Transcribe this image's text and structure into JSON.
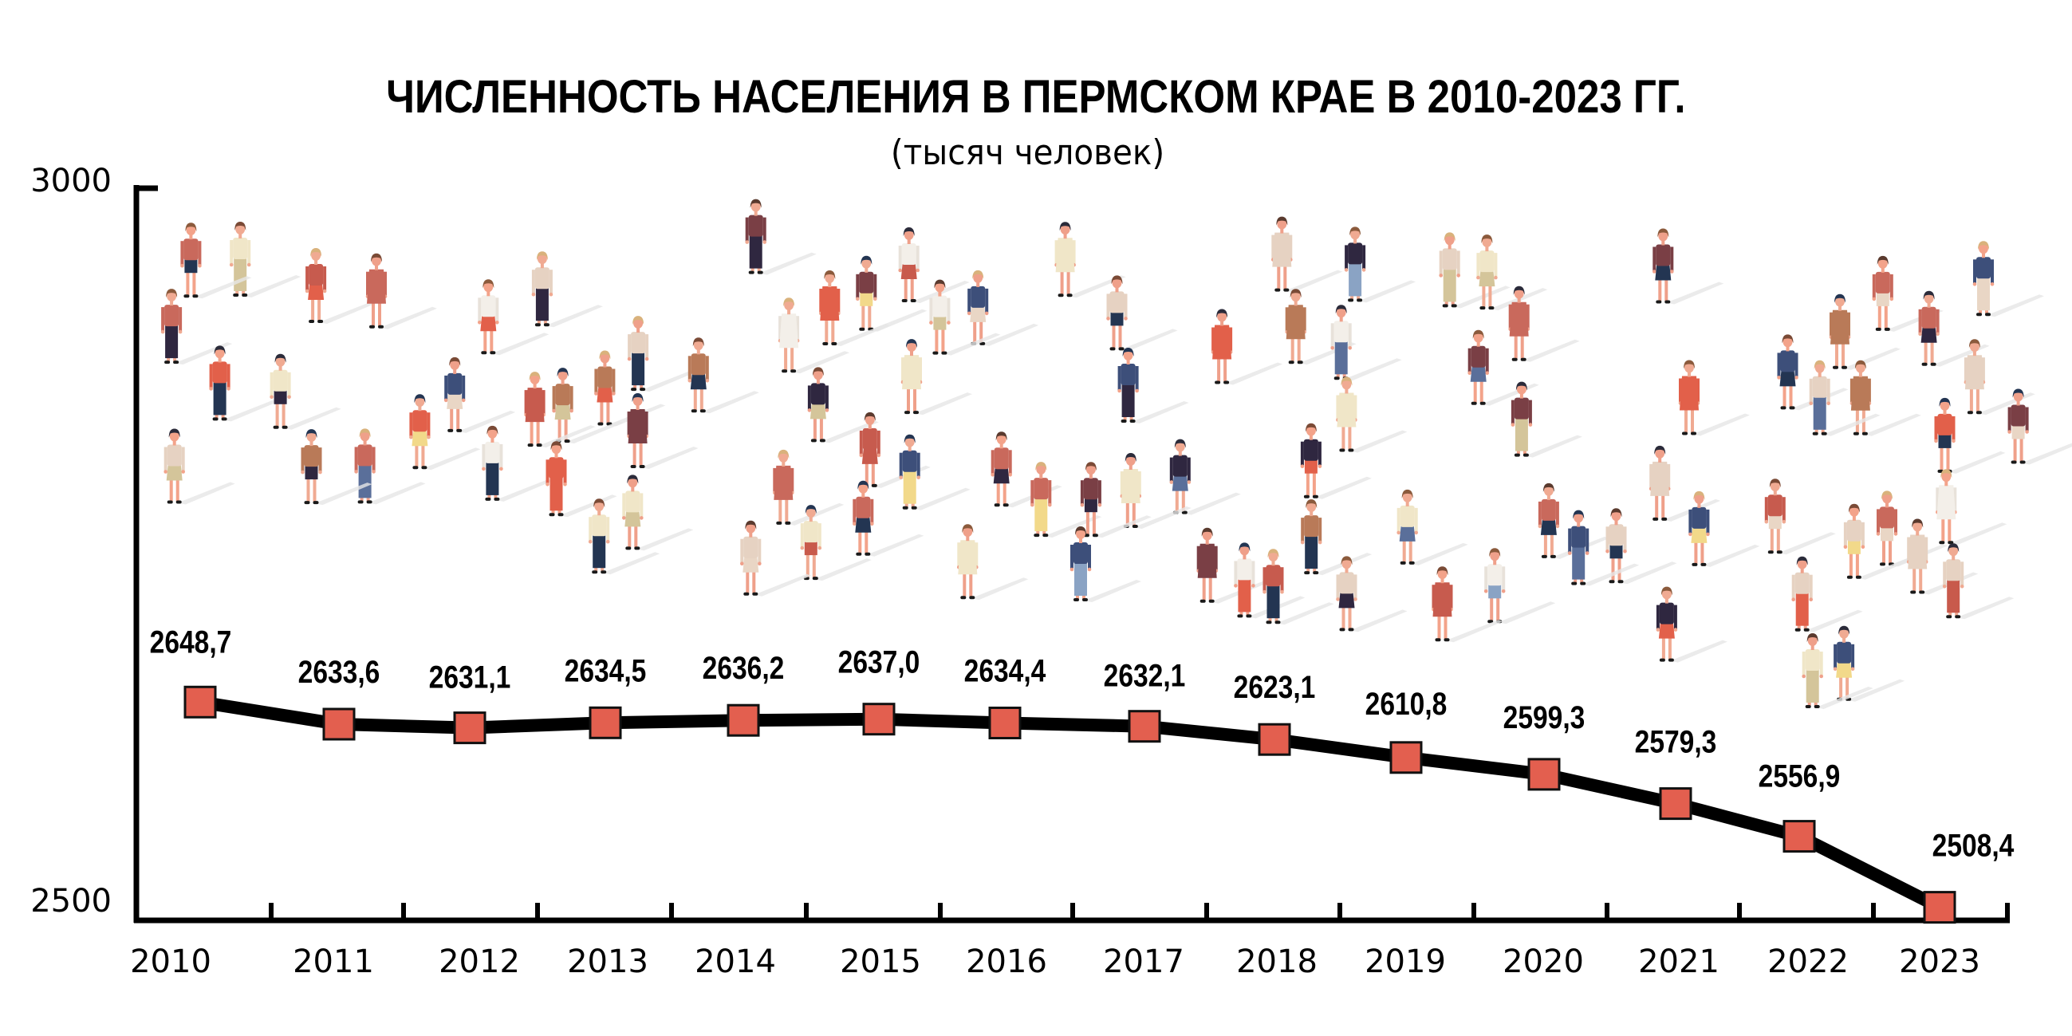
{
  "chart_data": {
    "type": "line",
    "title": "ЧИСЛЕННОСТЬ НАСЕЛЕНИЯ В ПЕРМСКОМ КРАЕ В 2010-2023 ГГ.",
    "subtitle": "(тысяч человек)",
    "xlabel": "",
    "ylabel": "",
    "ylim": [
      2500,
      3000
    ],
    "y_ticks": [
      {
        "value": 3000,
        "label": "3000"
      },
      {
        "value": 2500,
        "label": "2500"
      }
    ],
    "grid": false,
    "legend": "none",
    "categories": [
      "2010",
      "2011",
      "2012",
      "2013",
      "2014",
      "2015",
      "2016",
      "2017",
      "2018",
      "2019",
      "2020",
      "2021",
      "2022",
      "2023"
    ],
    "series": [
      {
        "name": "Численность населения",
        "values": [
          2648.7,
          2633.6,
          2631.1,
          2634.5,
          2636.2,
          2637.0,
          2634.4,
          2632.1,
          2623.1,
          2610.8,
          2599.3,
          2579.3,
          2556.9,
          2508.4
        ],
        "labels": [
          "2648,7",
          "2633,6",
          "2631,1",
          "2634,5",
          "2636,2",
          "2637,0",
          "2634,4",
          "2632,1",
          "2623,1",
          "2610,8",
          "2599,3",
          "2579,3",
          "2556,9",
          "2508,4"
        ],
        "line_color": "#000000",
        "marker_color": "#E35F4F",
        "marker": "square"
      }
    ],
    "background": "crowd of people illustration"
  },
  "colors": {
    "marker": "#E35F4F",
    "line": "#000000",
    "axis": "#000000",
    "shadow": "#e6e6e6"
  }
}
